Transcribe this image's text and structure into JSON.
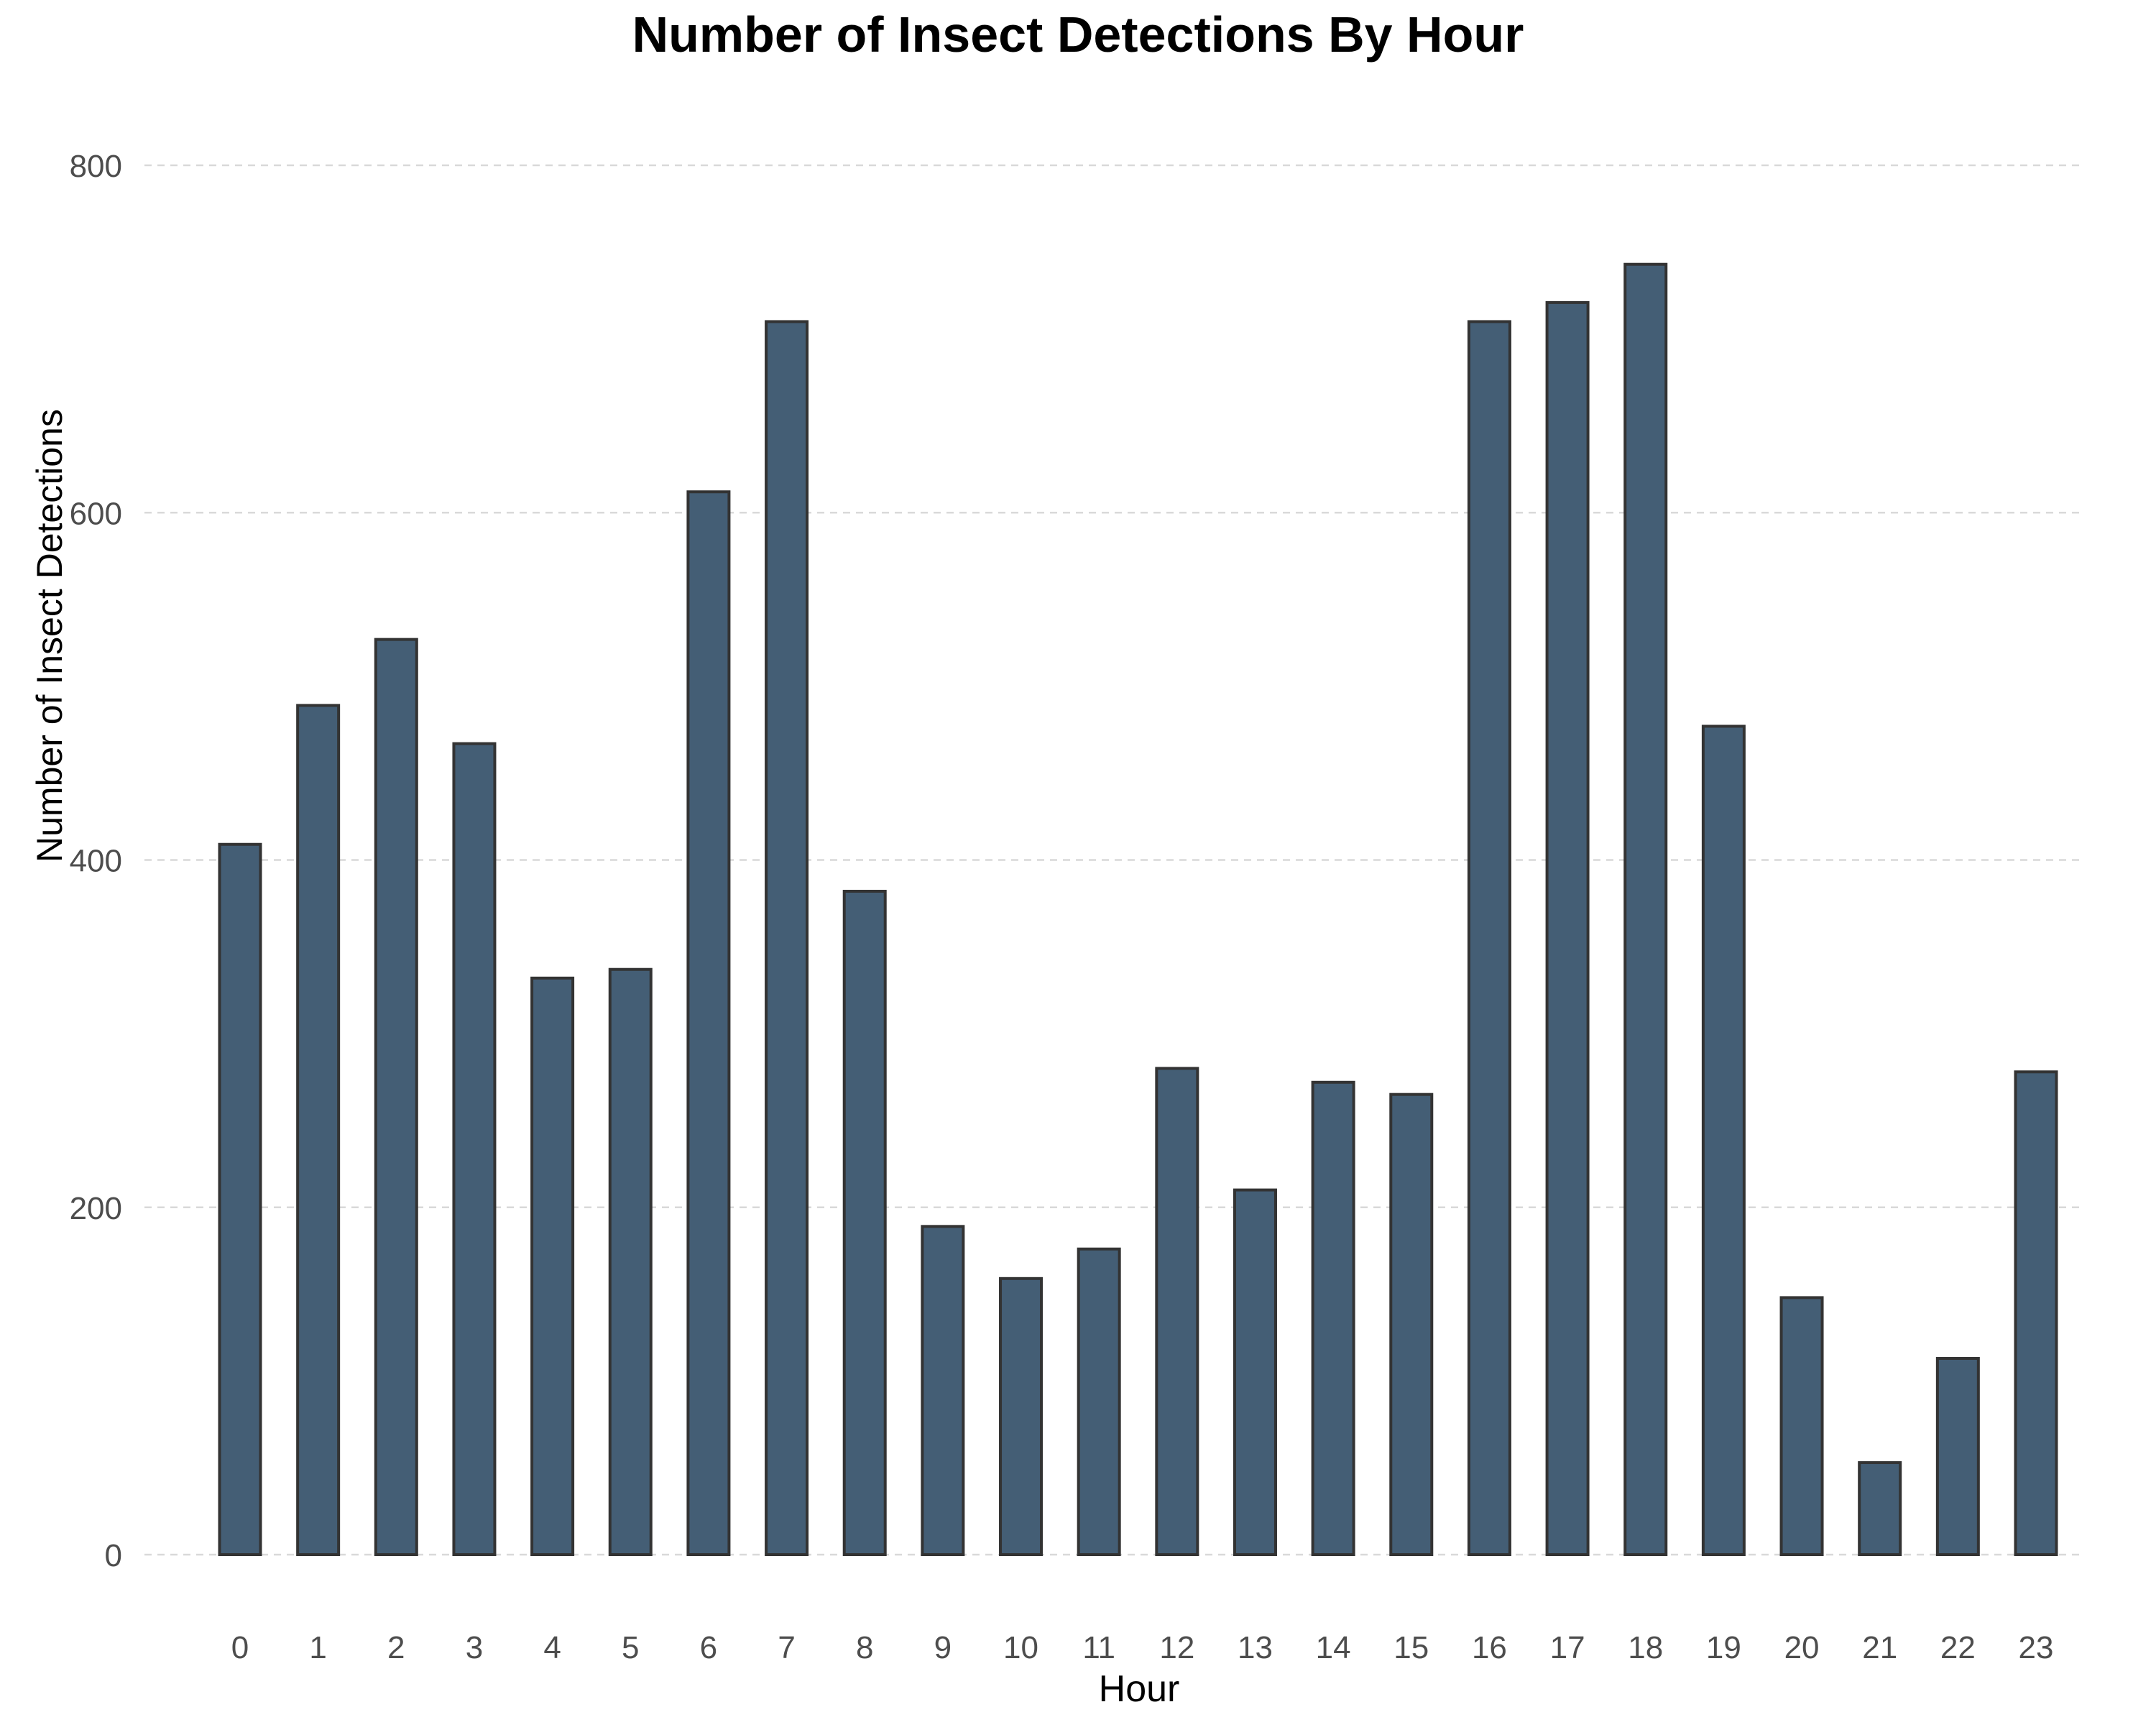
{
  "chart_data": {
    "type": "bar",
    "title": "Number of Insect Detections By Hour",
    "xlabel": "Hour",
    "ylabel": "Number of Insect Detections",
    "categories": [
      "0",
      "1",
      "2",
      "3",
      "4",
      "5",
      "6",
      "7",
      "8",
      "9",
      "10",
      "11",
      "12",
      "13",
      "14",
      "15",
      "16",
      "17",
      "18",
      "19",
      "20",
      "21",
      "22",
      "23"
    ],
    "values": [
      409,
      489,
      527,
      467,
      332,
      337,
      612,
      710,
      382,
      189,
      159,
      176,
      280,
      210,
      272,
      265,
      710,
      721,
      743,
      477,
      148,
      53,
      113,
      278
    ],
    "ylim": [
      0,
      800
    ],
    "yticks": [
      0,
      200,
      400,
      600,
      800
    ],
    "grid": "horizontal dashed",
    "legend": "none",
    "bar_color": "#445e75",
    "bar_edge_color": "#333333"
  }
}
